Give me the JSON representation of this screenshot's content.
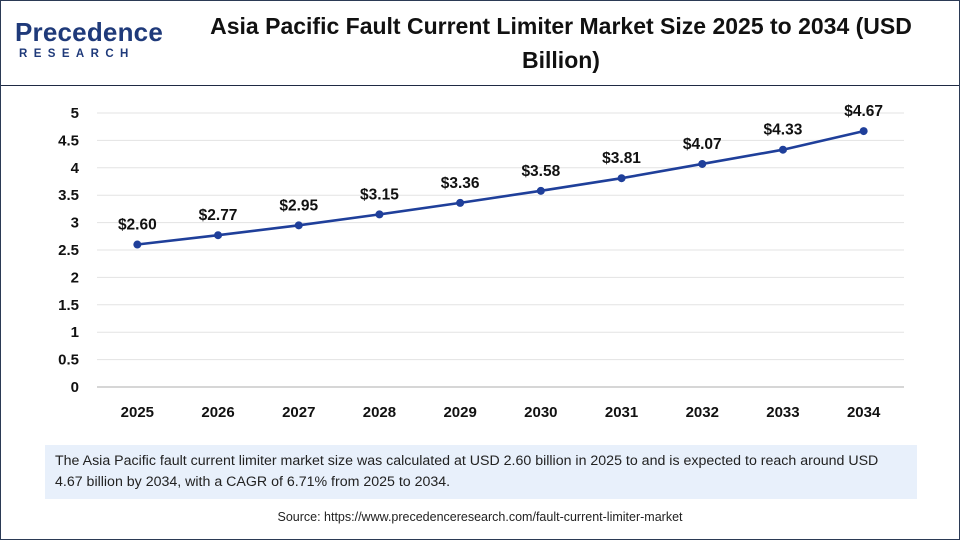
{
  "logo": {
    "brand": "Precedence",
    "sub": "RESEARCH"
  },
  "title": "Asia Pacific Fault Current Limiter Market Size 2025 to 2034 (USD Billion)",
  "chart_data": {
    "type": "line",
    "title": "Asia Pacific Fault Current Limiter Market Size 2025 to 2034 (USD Billion)",
    "categories": [
      "2025",
      "2026",
      "2027",
      "2028",
      "2029",
      "2030",
      "2031",
      "2032",
      "2033",
      "2034"
    ],
    "series": [
      {
        "values": [
          2.6,
          2.77,
          2.95,
          3.15,
          3.36,
          3.58,
          3.81,
          4.07,
          4.33,
          4.67
        ],
        "labels": [
          "$2.60",
          "$2.77",
          "$2.95",
          "$3.15",
          "$3.36",
          "$3.58",
          "$3.81",
          "$4.07",
          "$4.33",
          "$4.67"
        ],
        "color": "#1f3f9a"
      }
    ],
    "y_ticks": [
      "0",
      "0.5",
      "1",
      "1.5",
      "2",
      "2.5",
      "3",
      "3.5",
      "4",
      "4.5",
      "5"
    ],
    "ylim": [
      0,
      5
    ],
    "xlabel": "",
    "ylabel": "",
    "grid": true,
    "grid_color": "#e3e3e3"
  },
  "summary": "The Asia Pacific fault current limiter market size was calculated at USD 2.60 billion in 2025 to and is expected to reach around USD 4.67 billion by 2034, with a CAGR of 6.71% from 2025 to 2034.",
  "source": "Source: https://www.precedenceresearch.com/fault-current-limiter-market"
}
